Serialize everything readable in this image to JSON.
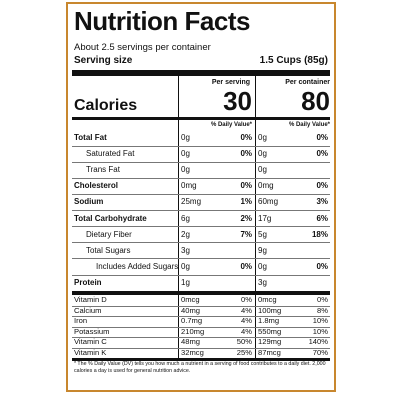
{
  "title": "Nutrition Facts",
  "servings_per_container": "About 2.5 servings per container",
  "serving_size": {
    "label": "Serving size",
    "value": "1.5 Cups (85g)"
  },
  "columns": {
    "per_serving": "Per serving",
    "per_container": "Per container",
    "dv_header": "% Daily Value*"
  },
  "calories": {
    "label": "Calories",
    "per_serving": "30",
    "per_container": "80"
  },
  "nutrients": [
    {
      "name": "Total Fat",
      "bold": true,
      "indent": 0,
      "q1": "0g",
      "p1": "0%",
      "q2": "0g",
      "p2": "0%"
    },
    {
      "name": "Saturated Fat",
      "bold": false,
      "indent": 1,
      "q1": "0g",
      "p1": "0%",
      "q2": "0g",
      "p2": "0%"
    },
    {
      "name": "Trans Fat",
      "bold": false,
      "indent": 1,
      "q1": "0g",
      "p1": "",
      "q2": "0g",
      "p2": ""
    },
    {
      "name": "Cholesterol",
      "bold": true,
      "indent": 0,
      "q1": "0mg",
      "p1": "0%",
      "q2": "0mg",
      "p2": "0%"
    },
    {
      "name": "Sodium",
      "bold": true,
      "indent": 0,
      "q1": "25mg",
      "p1": "1%",
      "q2": "60mg",
      "p2": "3%"
    },
    {
      "name": "Total Carbohydrate",
      "bold": true,
      "indent": 0,
      "q1": "6g",
      "p1": "2%",
      "q2": "17g",
      "p2": "6%"
    },
    {
      "name": "Dietary Fiber",
      "bold": false,
      "indent": 1,
      "q1": "2g",
      "p1": "7%",
      "q2": "5g",
      "p2": "18%"
    },
    {
      "name": "Total Sugars",
      "bold": false,
      "indent": 1,
      "q1": "3g",
      "p1": "",
      "q2": "9g",
      "p2": ""
    },
    {
      "name": "Includes Added Sugars",
      "bold": false,
      "indent": 2,
      "q1": "0g",
      "p1": "0%",
      "q2": "0g",
      "p2": "0%"
    },
    {
      "name": "Protein",
      "bold": true,
      "indent": 0,
      "q1": "1g",
      "p1": "",
      "q2": "3g",
      "p2": ""
    }
  ],
  "vitamins": [
    {
      "name": "Vitamin D",
      "q1": "0mcg",
      "p1": "0%",
      "q2": "0mcg",
      "p2": "0%"
    },
    {
      "name": "Calcium",
      "q1": "40mg",
      "p1": "4%",
      "q2": "100mg",
      "p2": "8%"
    },
    {
      "name": "Iron",
      "q1": "0.7mg",
      "p1": "4%",
      "q2": "1.8mg",
      "p2": "10%"
    },
    {
      "name": "Potassium",
      "q1": "210mg",
      "p1": "4%",
      "q2": "550mg",
      "p2": "10%"
    },
    {
      "name": "Vitamin C",
      "q1": "48mg",
      "p1": "50%",
      "q2": "129mg",
      "p2": "140%"
    },
    {
      "name": "Vitamin K",
      "q1": "32mcg",
      "p1": "25%",
      "q2": "87mcg",
      "p2": "70%"
    }
  ],
  "footnote": "* The % Daily Value (DV) tells you how much a nutrient in a serving of food contributes to a daily diet. 2,000 calories a day is used for general nutrition advice.",
  "colors": {
    "border": "#c8872e",
    "text": "#111111"
  }
}
